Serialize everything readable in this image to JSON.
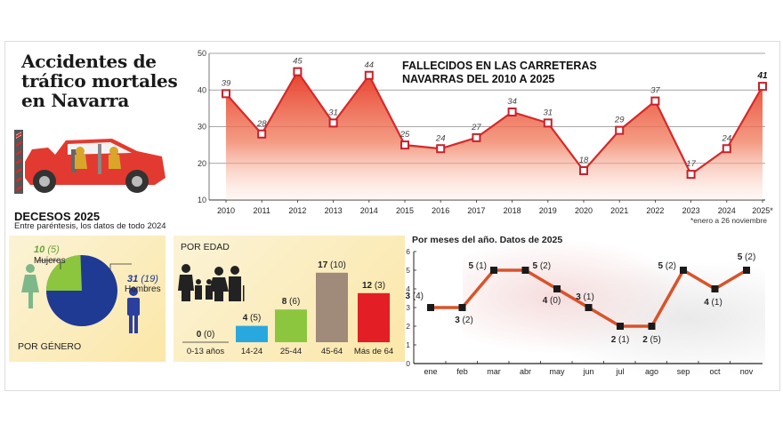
{
  "header": {
    "title_lines": [
      "Accidentes de",
      "tráfico mortales",
      "en Navarra"
    ]
  },
  "icons": {
    "car_crash": "car-crash-illustration",
    "woman": "woman-icon",
    "man": "man-icon",
    "family": "family-icon"
  },
  "colors": {
    "line_red": "#d42a2a",
    "area_top": "#e8402c",
    "women_green": "#8cc63f",
    "men_blue": "#1f3a93",
    "age_14_24": "#29a8e0",
    "age_25_44": "#8cc63f",
    "age_45_64": "#a08a7a",
    "age_65plus": "#e31e24",
    "month_line": "#d9532a",
    "panel_bg": "#fbeebb"
  },
  "main_chart": {
    "title_line1": "FALLECIDOS EN LAS CARRETERAS",
    "title_line2": "NAVARRAS DEL 2010 A 2025",
    "footnote": "*enero a 26 noviembre",
    "y_ticks": [
      "50",
      "40",
      "30",
      "20",
      "10"
    ],
    "x_labels": [
      "2010",
      "2011",
      "2012",
      "2013",
      "2014",
      "2015",
      "2016",
      "2017",
      "2018",
      "2019",
      "2020",
      "2021",
      "2022",
      "2023",
      "2024",
      "2025*"
    ],
    "value_labels": [
      "39",
      "28",
      "45",
      "31",
      "44",
      "25",
      "24",
      "27",
      "34",
      "31",
      "18",
      "29",
      "37",
      "17",
      "24",
      "41"
    ]
  },
  "decesos": {
    "title": "DECESOS 2025",
    "subtitle": "Entre paréntesis, los datos de todo 2024"
  },
  "gender": {
    "label": "POR GÉNERO",
    "women_value": "10",
    "women_prev": "(5)",
    "women_label": "Mujeres",
    "men_value": "31",
    "men_prev": "(19)",
    "men_label": "Hombres"
  },
  "age": {
    "label": "POR EDAD",
    "groups": [
      {
        "label": "0-13 años",
        "value": "0",
        "prev": "(0)"
      },
      {
        "label": "14-24",
        "value": "4",
        "prev": "(5)"
      },
      {
        "label": "25-44",
        "value": "8",
        "prev": "(6)"
      },
      {
        "label": "45-64",
        "value": "17",
        "prev": "(10)"
      },
      {
        "label": "Más de 64",
        "value": "12",
        "prev": "(3)"
      }
    ]
  },
  "months": {
    "title": "Por meses del año. Datos de 2025",
    "y_ticks": [
      "0",
      "1",
      "2",
      "3",
      "4",
      "5",
      "6"
    ],
    "x_labels": [
      "ene",
      "feb",
      "mar",
      "abr",
      "may",
      "jun",
      "jul",
      "ago",
      "sep",
      "oct",
      "nov"
    ],
    "values": [
      "3",
      "3",
      "5",
      "5",
      "4",
      "3",
      "2",
      "2",
      "5",
      "4",
      "5"
    ],
    "prev": [
      "(4)",
      "(2)",
      "(1)",
      "(2)",
      "(0)",
      "(1)",
      "(1)",
      "(5)",
      "(2)",
      "(1)",
      "(2)"
    ]
  },
  "chart_data": [
    {
      "type": "area",
      "title": "FALLECIDOS EN LAS CARRETERAS NAVARRAS DEL 2010 A 2025",
      "categories": [
        "2010",
        "2011",
        "2012",
        "2013",
        "2014",
        "2015",
        "2016",
        "2017",
        "2018",
        "2019",
        "2020",
        "2021",
        "2022",
        "2023",
        "2024",
        "2025*"
      ],
      "values": [
        39,
        28,
        45,
        31,
        44,
        25,
        24,
        27,
        34,
        31,
        18,
        29,
        37,
        17,
        24,
        41
      ],
      "xlabel": "",
      "ylabel": "",
      "ylim": [
        10,
        50
      ],
      "y_ticks": [
        10,
        20,
        30,
        40,
        50
      ],
      "grid": true,
      "annotations": [
        "*enero a 26 noviembre"
      ]
    },
    {
      "type": "pie",
      "title": "POR GÉNERO",
      "categories": [
        "Mujeres",
        "Hombres"
      ],
      "values": [
        10,
        31
      ],
      "previous_year": [
        5,
        19
      ]
    },
    {
      "type": "bar",
      "title": "POR EDAD",
      "categories": [
        "0-13 años",
        "14-24",
        "25-44",
        "45-64",
        "Más de 64"
      ],
      "values": [
        0,
        4,
        8,
        17,
        12
      ],
      "previous_year": [
        0,
        5,
        6,
        10,
        3
      ]
    },
    {
      "type": "line",
      "title": "Por meses del año. Datos de 2025",
      "categories": [
        "ene",
        "feb",
        "mar",
        "abr",
        "may",
        "jun",
        "jul",
        "ago",
        "sep",
        "oct",
        "nov"
      ],
      "values": [
        3,
        3,
        5,
        5,
        4,
        3,
        2,
        2,
        5,
        4,
        5
      ],
      "previous_year": [
        4,
        2,
        1,
        2,
        0,
        1,
        1,
        5,
        2,
        1,
        2
      ],
      "ylim": [
        0,
        6
      ],
      "y_ticks": [
        0,
        1,
        2,
        3,
        4,
        5,
        6
      ]
    }
  ]
}
